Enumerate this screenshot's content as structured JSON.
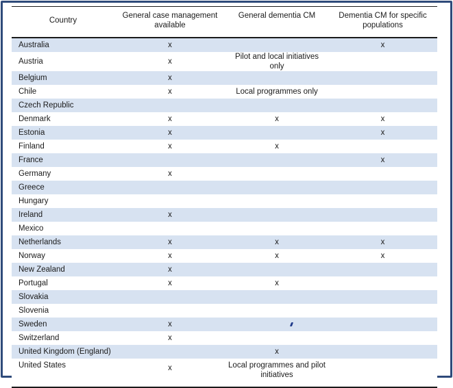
{
  "table": {
    "headers": {
      "country": "Country",
      "general_cm": "General case management available",
      "dementia_cm": "General dementia CM",
      "specific_cm": "Dementia CM for specific populations"
    },
    "rows": [
      {
        "country": "Australia",
        "general_cm": "x",
        "dementia_cm": "",
        "specific_cm": "x"
      },
      {
        "country": "Austria",
        "general_cm": "x",
        "dementia_cm": "Pilot and local initiatives only",
        "specific_cm": ""
      },
      {
        "country": "Belgium",
        "general_cm": "x",
        "dementia_cm": "",
        "specific_cm": ""
      },
      {
        "country": "Chile",
        "general_cm": "x",
        "dementia_cm": "Local programmes only",
        "specific_cm": ""
      },
      {
        "country": "Czech Republic",
        "general_cm": "",
        "dementia_cm": "",
        "specific_cm": ""
      },
      {
        "country": "Denmark",
        "general_cm": "x",
        "dementia_cm": "x",
        "specific_cm": "x"
      },
      {
        "country": "Estonia",
        "general_cm": "x",
        "dementia_cm": "",
        "specific_cm": "x"
      },
      {
        "country": "Finland",
        "general_cm": "x",
        "dementia_cm": "x",
        "specific_cm": ""
      },
      {
        "country": "France",
        "general_cm": "",
        "dementia_cm": "",
        "specific_cm": "x"
      },
      {
        "country": "Germany",
        "general_cm": "x",
        "dementia_cm": "",
        "specific_cm": ""
      },
      {
        "country": "Greece",
        "general_cm": "",
        "dementia_cm": "",
        "specific_cm": ""
      },
      {
        "country": "Hungary",
        "general_cm": "",
        "dementia_cm": "",
        "specific_cm": ""
      },
      {
        "country": "Ireland",
        "general_cm": "x",
        "dementia_cm": "",
        "specific_cm": ""
      },
      {
        "country": "Mexico",
        "general_cm": "",
        "dementia_cm": "",
        "specific_cm": ""
      },
      {
        "country": "Netherlands",
        "general_cm": "x",
        "dementia_cm": "x",
        "specific_cm": "x"
      },
      {
        "country": "Norway",
        "general_cm": "x",
        "dementia_cm": "x",
        "specific_cm": "x"
      },
      {
        "country": "New Zealand",
        "general_cm": "x",
        "dementia_cm": "",
        "specific_cm": ""
      },
      {
        "country": "Portugal",
        "general_cm": "x",
        "dementia_cm": "x",
        "specific_cm": ""
      },
      {
        "country": "Slovakia",
        "general_cm": "",
        "dementia_cm": "",
        "specific_cm": ""
      },
      {
        "country": "Slovenia",
        "general_cm": "",
        "dementia_cm": "",
        "specific_cm": ""
      },
      {
        "country": "Sweden",
        "general_cm": "x",
        "dementia_cm": "",
        "specific_cm": ""
      },
      {
        "country": "Switzerland",
        "general_cm": "x",
        "dementia_cm": "",
        "specific_cm": ""
      },
      {
        "country": "United Kingdom (England)",
        "general_cm": "",
        "dementia_cm": "x",
        "specific_cm": ""
      },
      {
        "country": "United States",
        "general_cm": "x",
        "dementia_cm": "Local programmes and pilot initiatives",
        "specific_cm": ""
      }
    ]
  },
  "colors": {
    "stripe": "#d7e2f1",
    "frame": "#2e4a7a",
    "rule": "#1a1a1a",
    "tick_mark": "#1f3a8a"
  }
}
